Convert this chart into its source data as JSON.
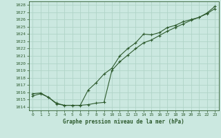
{
  "title": "Graphe pression niveau de la mer (hPa)",
  "background_color": "#cbe8e0",
  "grid_color": "#b0d4c8",
  "line_color": "#2d5a2d",
  "marker_color": "#2d5a2d",
  "xlim": [
    -0.5,
    23.5
  ],
  "ylim": [
    1013.5,
    1028.5
  ],
  "yticks": [
    1014,
    1015,
    1016,
    1017,
    1018,
    1019,
    1020,
    1021,
    1022,
    1023,
    1024,
    1025,
    1026,
    1027,
    1028
  ],
  "xticks": [
    0,
    1,
    2,
    3,
    4,
    5,
    6,
    7,
    8,
    9,
    10,
    11,
    12,
    13,
    14,
    15,
    16,
    17,
    18,
    19,
    20,
    21,
    22,
    23
  ],
  "series1_x": [
    0,
    1,
    2,
    3,
    4,
    5,
    6,
    7,
    8,
    9,
    10,
    11,
    12,
    13,
    14,
    15,
    16,
    17,
    18,
    19,
    20,
    21,
    22,
    23
  ],
  "series1_y": [
    1015.5,
    1015.8,
    1015.3,
    1014.4,
    1014.2,
    1014.2,
    1014.2,
    1014.3,
    1014.5,
    1014.6,
    1019.0,
    1020.2,
    1021.1,
    1022.0,
    1022.8,
    1023.2,
    1023.8,
    1024.4,
    1024.9,
    1025.4,
    1025.9,
    1026.3,
    1026.8,
    1027.5
  ],
  "series2_x": [
    0,
    1,
    2,
    3,
    4,
    5,
    6,
    7,
    8,
    9,
    10,
    11,
    12,
    13,
    14,
    15,
    16,
    17,
    18,
    19,
    20,
    21,
    22,
    23
  ],
  "series2_y": [
    1015.8,
    1015.9,
    1015.3,
    1014.5,
    1014.2,
    1014.2,
    1014.2,
    1016.3,
    1017.3,
    1018.5,
    1019.3,
    1021.0,
    1022.0,
    1022.8,
    1024.0,
    1023.9,
    1024.2,
    1024.9,
    1025.2,
    1025.7,
    1026.0,
    1026.3,
    1026.9,
    1027.8
  ]
}
